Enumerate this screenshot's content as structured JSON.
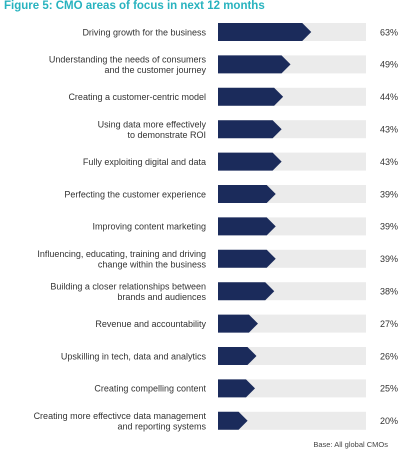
{
  "figure": {
    "title": "Figure 5: CMO areas of focus in next 12 months",
    "source": "Base: All global CMOs"
  },
  "colors": {
    "title": "#28b3bf",
    "bar": "#1b2b5b",
    "track": "#ebebeb",
    "text": "#333333"
  },
  "chart_data": {
    "type": "bar",
    "orientation": "horizontal",
    "title": "Figure 5: CMO areas of focus in next 12 months",
    "xlim": [
      0,
      100
    ],
    "value_suffix": "%",
    "categories": [
      [
        "Driving growth for the business"
      ],
      [
        "Understanding the needs of consumers",
        "and the customer journey"
      ],
      [
        "Creating a customer-centric model"
      ],
      [
        "Using data more effectively",
        "to demonstrate ROI"
      ],
      [
        "Fully exploiting digital and data"
      ],
      [
        "Perfecting the customer experience"
      ],
      [
        "Improving content marketing"
      ],
      [
        "Influencing, educating, training and driving",
        "change within the business"
      ],
      [
        "Building a closer relationships between",
        "brands and audiences"
      ],
      [
        "Revenue and accountability"
      ],
      [
        "Upskilling in tech, data and analytics"
      ],
      [
        "Creating compelling content"
      ],
      [
        "Creating more effectivce data management",
        "and reporting systems"
      ]
    ],
    "values": [
      63,
      49,
      44,
      43,
      43,
      39,
      39,
      39,
      38,
      27,
      26,
      25,
      20
    ]
  }
}
